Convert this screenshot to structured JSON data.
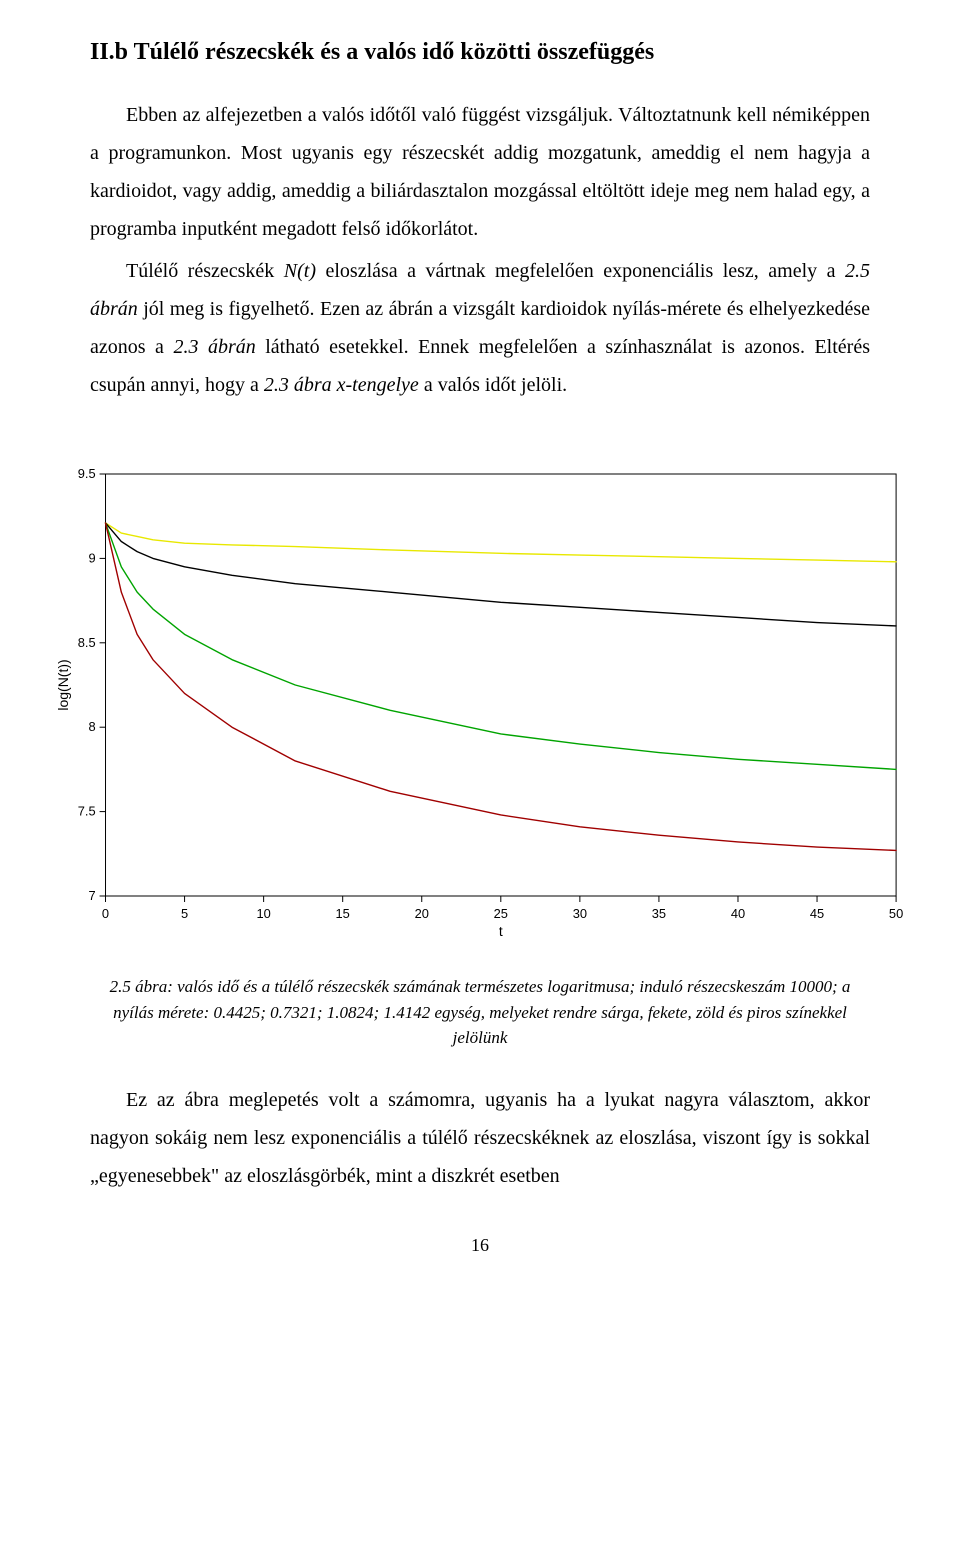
{
  "heading": "II.b Túlélő részecskék és a valós idő közötti összefüggés",
  "paragraphs": {
    "p1a": "Ebben az alfejezetben a valós időtől való függést vizsgáljuk. Változtatnunk kell némiképpen a programunkon. Most ugyanis egy részecskét addig mozgatunk, ameddig el nem hagyja a kardioidot, vagy addig, ameddig a biliárdasztalon mozgással eltöltött ideje meg nem halad egy, a programba inputként megadott felső időkorlátot.",
    "p2_pre": "Túlélő részecskék ",
    "p2_nt": "N(t)",
    "p2_mid1": " eloszlása a vártnak megfelelően exponenciális lesz, amely a ",
    "p2_ref25": "2.5 ábrán",
    "p2_mid2": " jól meg is figyelhető. Ezen az ábrán a vizsgált kardioidok nyílás-mérete és elhelyezkedése azonos a ",
    "p2_ref23a": "2.3 ábrán",
    "p2_mid3": " látható esetekkel. Ennek megfelelően a színhasználat is azonos. Eltérés csupán annyi, hogy a ",
    "p2_ref23x": "2.3 ábra x-tengelye",
    "p2_end": " a valós időt jelöli.",
    "p3": "Ez az ábra meglepetés volt a számomra, ugyanis ha a lyukat nagyra választom, akkor nagyon sokáig nem lesz exponenciális a túlélő részecskéknek az eloszlása, viszont így is sokkal „egyenesebbek\" az eloszlásgörbék, mint a diszkrét esetben"
  },
  "caption": "2.5 ábra: valós idő és a túlélő részecskék számának természetes logaritmusa; induló részecskeszám 10000; a nyílás mérete: 0.4425; 0.7321; 1.0824; 1.4142 egység, melyeket rendre sárga, fekete, zöld és piros színekkel jelölünk",
  "page_number": "16",
  "chart": {
    "type": "line",
    "xlabel": "t",
    "ylabel": "log(N(t))",
    "label_fontsize": 14,
    "tick_fontsize": 13,
    "xlim": [
      0,
      50
    ],
    "ylim": [
      7,
      9.5
    ],
    "xticks": [
      0,
      5,
      10,
      15,
      20,
      25,
      30,
      35,
      40,
      45,
      50
    ],
    "yticks": [
      7,
      7.5,
      8,
      8.5,
      9,
      9.5
    ],
    "background_color": "#ffffff",
    "axis_color": "#000000",
    "tick_color": "#000000",
    "line_width": 1.4,
    "series": [
      {
        "name": "yellow-0.4425",
        "color": "#e8e800",
        "x": [
          0,
          1,
          2,
          3,
          5,
          8,
          12,
          18,
          25,
          30,
          35,
          40,
          45,
          50
        ],
        "y": [
          9.21,
          9.15,
          9.13,
          9.11,
          9.09,
          9.08,
          9.07,
          9.05,
          9.03,
          9.02,
          9.01,
          9.0,
          8.99,
          8.98
        ]
      },
      {
        "name": "black-0.7321",
        "color": "#000000",
        "x": [
          0,
          1,
          2,
          3,
          5,
          8,
          12,
          18,
          25,
          30,
          35,
          40,
          45,
          50
        ],
        "y": [
          9.21,
          9.1,
          9.04,
          9.0,
          8.95,
          8.9,
          8.85,
          8.8,
          8.74,
          8.71,
          8.68,
          8.65,
          8.62,
          8.6
        ]
      },
      {
        "name": "green-1.0824",
        "color": "#00a400",
        "x": [
          0,
          1,
          2,
          3,
          5,
          8,
          12,
          18,
          25,
          30,
          35,
          40,
          45,
          50
        ],
        "y": [
          9.21,
          8.95,
          8.8,
          8.7,
          8.55,
          8.4,
          8.25,
          8.1,
          7.96,
          7.9,
          7.85,
          7.81,
          7.78,
          7.75
        ]
      },
      {
        "name": "red-1.4142",
        "color": "#a00000",
        "x": [
          0,
          1,
          2,
          3,
          5,
          8,
          12,
          18,
          25,
          30,
          35,
          40,
          45,
          50
        ],
        "y": [
          9.21,
          8.8,
          8.55,
          8.4,
          8.2,
          8.0,
          7.8,
          7.62,
          7.48,
          7.41,
          7.36,
          7.32,
          7.29,
          7.27
        ]
      }
    ]
  }
}
